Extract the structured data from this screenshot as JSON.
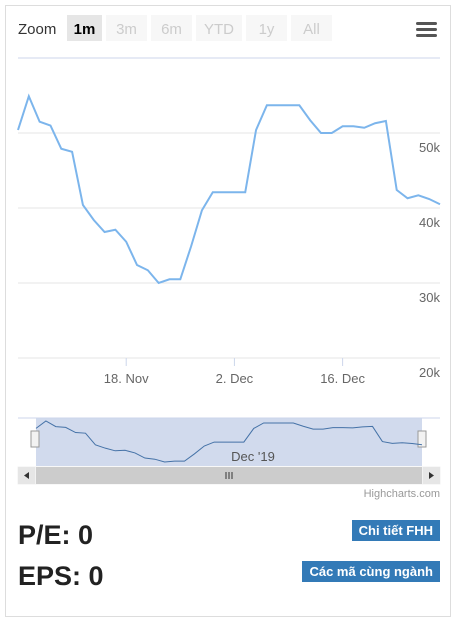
{
  "range_selector": {
    "label": "Zoom",
    "buttons": [
      "1m",
      "3m",
      "6m",
      "YTD",
      "1y",
      "All"
    ],
    "selected": 0
  },
  "chart_data": {
    "type": "line",
    "color": "#7cb5ec",
    "categories": [
      null,
      null,
      null,
      null,
      null,
      null,
      null,
      null,
      null,
      null,
      "18. Nov",
      null,
      null,
      null,
      null,
      null,
      null,
      null,
      null,
      null,
      "2. Dec",
      null,
      null,
      null,
      null,
      null,
      null,
      null,
      null,
      null,
      "16. Dec",
      null,
      null,
      null,
      null,
      null,
      null,
      null,
      null,
      null
    ],
    "values": [
      50400,
      54900,
      51500,
      51000,
      47900,
      47500,
      40400,
      38400,
      36800,
      37100,
      35500,
      32400,
      31700,
      30000,
      30500,
      30500,
      34900,
      39700,
      42100,
      42100,
      42100,
      42100,
      50400,
      53700,
      53700,
      53700,
      53700,
      51700,
      50000,
      50000,
      50900,
      50900,
      50700,
      51300,
      51600,
      42400,
      41300,
      41700,
      41200,
      40500
    ],
    "ylim": [
      20000,
      60000
    ],
    "yticks": [
      {
        "value": 20000,
        "label": "20k"
      },
      {
        "value": 30000,
        "label": "30k"
      },
      {
        "value": 40000,
        "label": "40k"
      },
      {
        "value": 50000,
        "label": "50k"
      }
    ],
    "grid": true,
    "navigator_label": "Dec '19"
  },
  "credits": "Highcharts.com",
  "stats": [
    "P/E: 0",
    "EPS: 0"
  ],
  "links": [
    "Chi tiết FHH",
    "Các mã cùng ngành"
  ]
}
